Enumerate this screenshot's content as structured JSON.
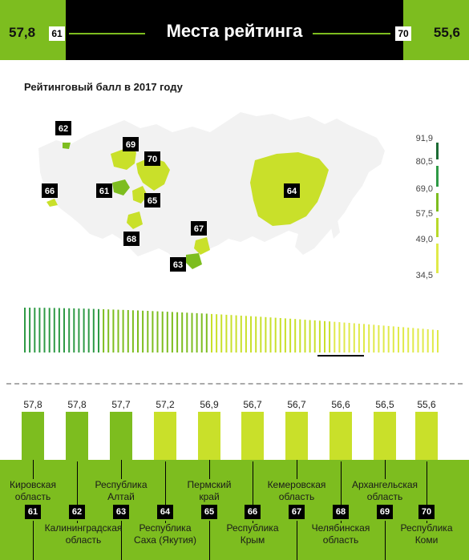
{
  "header": {
    "title": "Места рейтинга",
    "left_score": "57,8",
    "left_rank": "61",
    "right_score": "55,6",
    "right_rank": "70"
  },
  "subtitle": "Рейтинговый балл в 2017 году",
  "colors": {
    "green": "#7dbd1f",
    "yellow_green": "#c9e02a",
    "dark_green": "#1f7a3a",
    "black": "#000000"
  },
  "legend": {
    "labels": [
      "91,9",
      "80,5",
      "69,0",
      "57,5",
      "49,0",
      "34,5"
    ],
    "colors": [
      "#1c6b35",
      "#2e9a45",
      "#7dbd1f",
      "#b8d92a",
      "#e0ea4a"
    ]
  },
  "map_markers": [
    "62",
    "69",
    "70",
    "66",
    "61",
    "65",
    "64",
    "67",
    "68",
    "63"
  ],
  "chart_data": {
    "type": "bar",
    "title": "Рейтинговый балл в 2017 году",
    "categories": [
      "Кировская область",
      "Калининградская область",
      "Республика Алтай",
      "Республика Саха (Якутия)",
      "Пермский край",
      "Республика Крым",
      "Кемеровская область",
      "Челябинская область",
      "Архангельская область",
      "Республика Коми"
    ],
    "ranks": [
      "61",
      "62",
      "63",
      "64",
      "65",
      "66",
      "67",
      "68",
      "69",
      "70"
    ],
    "values": [
      57.8,
      57.8,
      57.7,
      57.2,
      56.9,
      56.7,
      56.7,
      56.6,
      56.5,
      55.6
    ],
    "value_labels": [
      "57,8",
      "57,8",
      "57,7",
      "57,2",
      "56,9",
      "56,7",
      "56,7",
      "56,6",
      "56,5",
      "55,6"
    ],
    "ylim": [
      34.5,
      91.9
    ]
  },
  "names": {
    "top": [
      [
        "Кировская",
        "область"
      ],
      [
        "Республика",
        "Алтай"
      ],
      [
        "Пермский",
        "край"
      ],
      [
        "Кемеровская",
        "область"
      ],
      [
        "Архангельская",
        "область"
      ]
    ],
    "bottom": [
      [
        "Калининградская",
        "область"
      ],
      [
        "Республика",
        "Саха (Якутия)"
      ],
      [
        "Республика",
        "Крым"
      ],
      [
        "Челябинская",
        "область"
      ],
      [
        "Республика",
        "Коми"
      ]
    ]
  }
}
